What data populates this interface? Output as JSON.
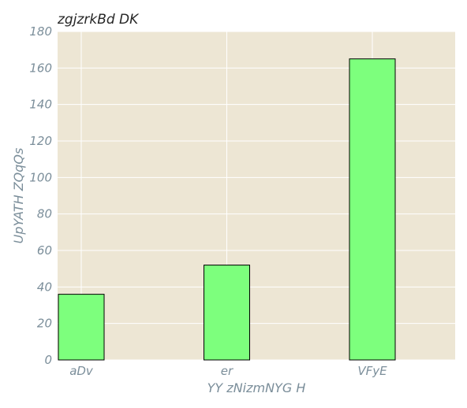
{
  "chart_data": {
    "type": "bar",
    "title": "zgjzrkBd DK",
    "xlabel": "YY zNizmNYG H",
    "ylabel": "UpYATH ZQqQs",
    "categories": [
      "aDv",
      "er",
      "VFyE"
    ],
    "values": [
      36,
      52,
      165
    ],
    "ylim": [
      0,
      180
    ],
    "yticks": [
      0,
      20,
      40,
      60,
      80,
      100,
      120,
      140,
      160,
      180
    ],
    "grid": true,
    "colors": {
      "background": "#ede6d4",
      "bar": "#7dff7d",
      "bar_edge": "#000000",
      "grid": "#ffffff",
      "text": "#7b8e9a",
      "title": "#262626"
    }
  }
}
